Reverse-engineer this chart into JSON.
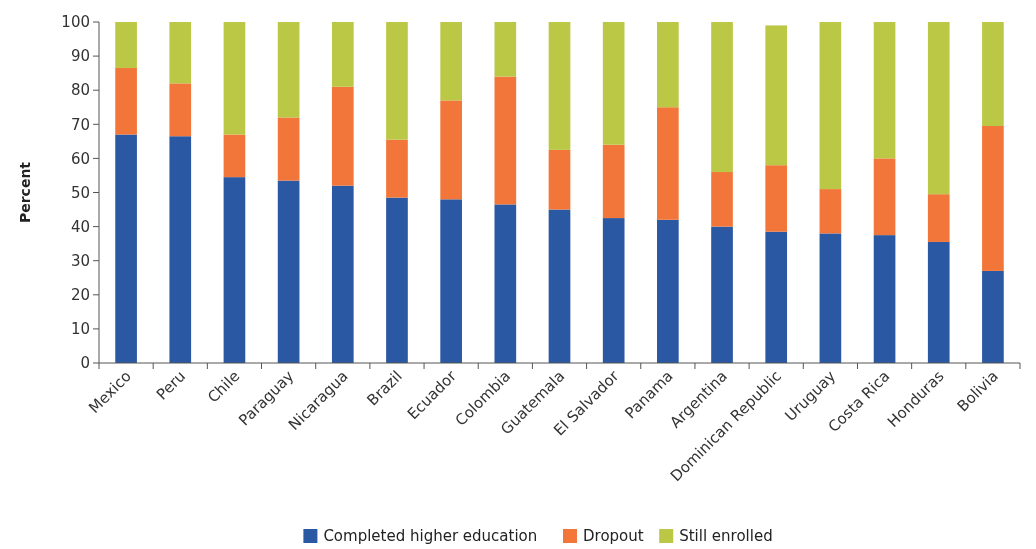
{
  "chart_data": {
    "type": "bar",
    "stacked": true,
    "ylabel": "Percent",
    "categories": [
      "Mexico",
      "Peru",
      "Chile",
      "Paraguay",
      "Nicaragua",
      "Brazil",
      "Ecuador",
      "Colombia",
      "Guatemala",
      "El Salvador",
      "Panama",
      "Argentina",
      "Dominican Republic",
      "Uruguay",
      "Costa Rica",
      "Honduras",
      "Bolivia"
    ],
    "series": [
      {
        "name": "Completed higher education",
        "color": "#2a58a2",
        "values": [
          67,
          66.5,
          54.5,
          53.5,
          52,
          48.5,
          48,
          46.5,
          45,
          42.5,
          42,
          40,
          38.5,
          38,
          37.5,
          35.5,
          27
        ]
      },
      {
        "name": "Dropout",
        "color": "#f2763a",
        "values": [
          19.5,
          15.5,
          12.5,
          18.5,
          29,
          17,
          29,
          37.5,
          17.5,
          21.5,
          33,
          16,
          19.5,
          13,
          22.5,
          14,
          42.5
        ]
      },
      {
        "name": "Still enrolled",
        "color": "#bbc846",
        "values": [
          13.5,
          18,
          33,
          28,
          19,
          34.5,
          23,
          16,
          37.5,
          36,
          25,
          44,
          41,
          49,
          40,
          50.5,
          30.5
        ]
      }
    ],
    "ylim": [
      0,
      100
    ],
    "yticks": [
      0,
      10,
      20,
      30,
      40,
      50,
      60,
      70,
      80,
      90,
      100
    ],
    "grid": false,
    "legend": "bottom"
  }
}
